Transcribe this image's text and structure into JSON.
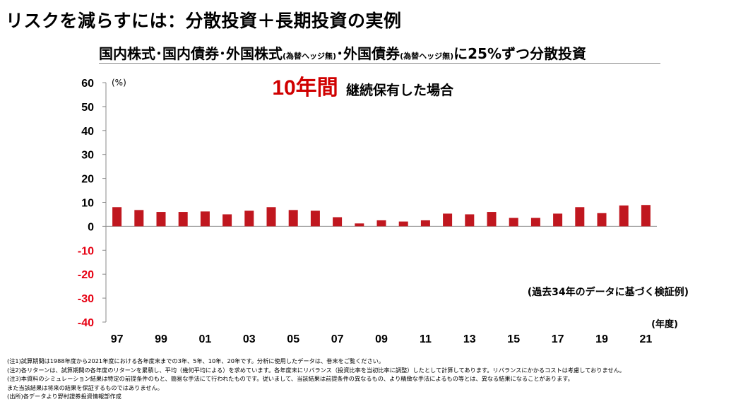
{
  "header": {
    "title": "リスクを減らすには：分散投資＋長期投資の実例",
    "subtitle_parts": [
      "国内株式･国内債券･外国株式",
      "(為替ヘッジ無)",
      "･外国債券",
      "(為替ヘッジ無)",
      "に25%ずつ分散投資"
    ]
  },
  "chart_data": {
    "type": "bar",
    "period_label_num": "10年間",
    "period_label_text": "継続保有した場合",
    "y_unit": "(%)",
    "x_unit": "(年度)",
    "annotation": "(過去34年のデータに基づく検証例)",
    "ylim": [
      -40,
      60
    ],
    "yticks": [
      60,
      50,
      40,
      30,
      20,
      10,
      0,
      -10,
      -20,
      -30,
      -40
    ],
    "categories": [
      "97",
      "98",
      "99",
      "00",
      "01",
      "02",
      "03",
      "04",
      "05",
      "06",
      "07",
      "08",
      "09",
      "10",
      "11",
      "12",
      "13",
      "14",
      "15",
      "16",
      "17",
      "18",
      "19",
      "20",
      "21"
    ],
    "xtick_labels": [
      "97",
      "99",
      "01",
      "03",
      "05",
      "07",
      "09",
      "11",
      "13",
      "15",
      "17",
      "19",
      "21"
    ],
    "values": [
      8.0,
      6.8,
      6.0,
      6.0,
      6.2,
      5.0,
      6.5,
      8.0,
      6.8,
      6.5,
      3.8,
      1.2,
      2.5,
      2.0,
      2.5,
      5.3,
      5.0,
      6.0,
      3.5,
      3.5,
      5.3,
      8.0,
      5.5,
      8.7,
      8.9
    ],
    "bar_color": "#c0171f",
    "negative_tick_color": "#e60012",
    "grid": false,
    "legend": "none"
  },
  "notes": [
    "(注1)試算期間は1988年度から2021年度における各年度末までの3年、5年、10年、20年です。分析に使用したデータは、巻末をご覧ください。",
    "(注2)各リターンは、試算期間の各年度のリターンを累積し、平均（幾何平均による）を求めています。各年度末にリバランス（投資比率を当初比率に調整）したとして計算してあります。リバランスにかかるコストは考慮しておりません。",
    "(注3)本資料のシミュレーション結果は特定の前提条件のもと、簡易な手法にて行われたものです。従いまして、当該結果は前提条件の異なるもの、より精緻な手法によるもの等とは、異なる結果になることがあります。",
    "また当該結果は将来の結果を保証するものではありません。",
    "(出所)各データより野村證券投資情報部作成"
  ]
}
